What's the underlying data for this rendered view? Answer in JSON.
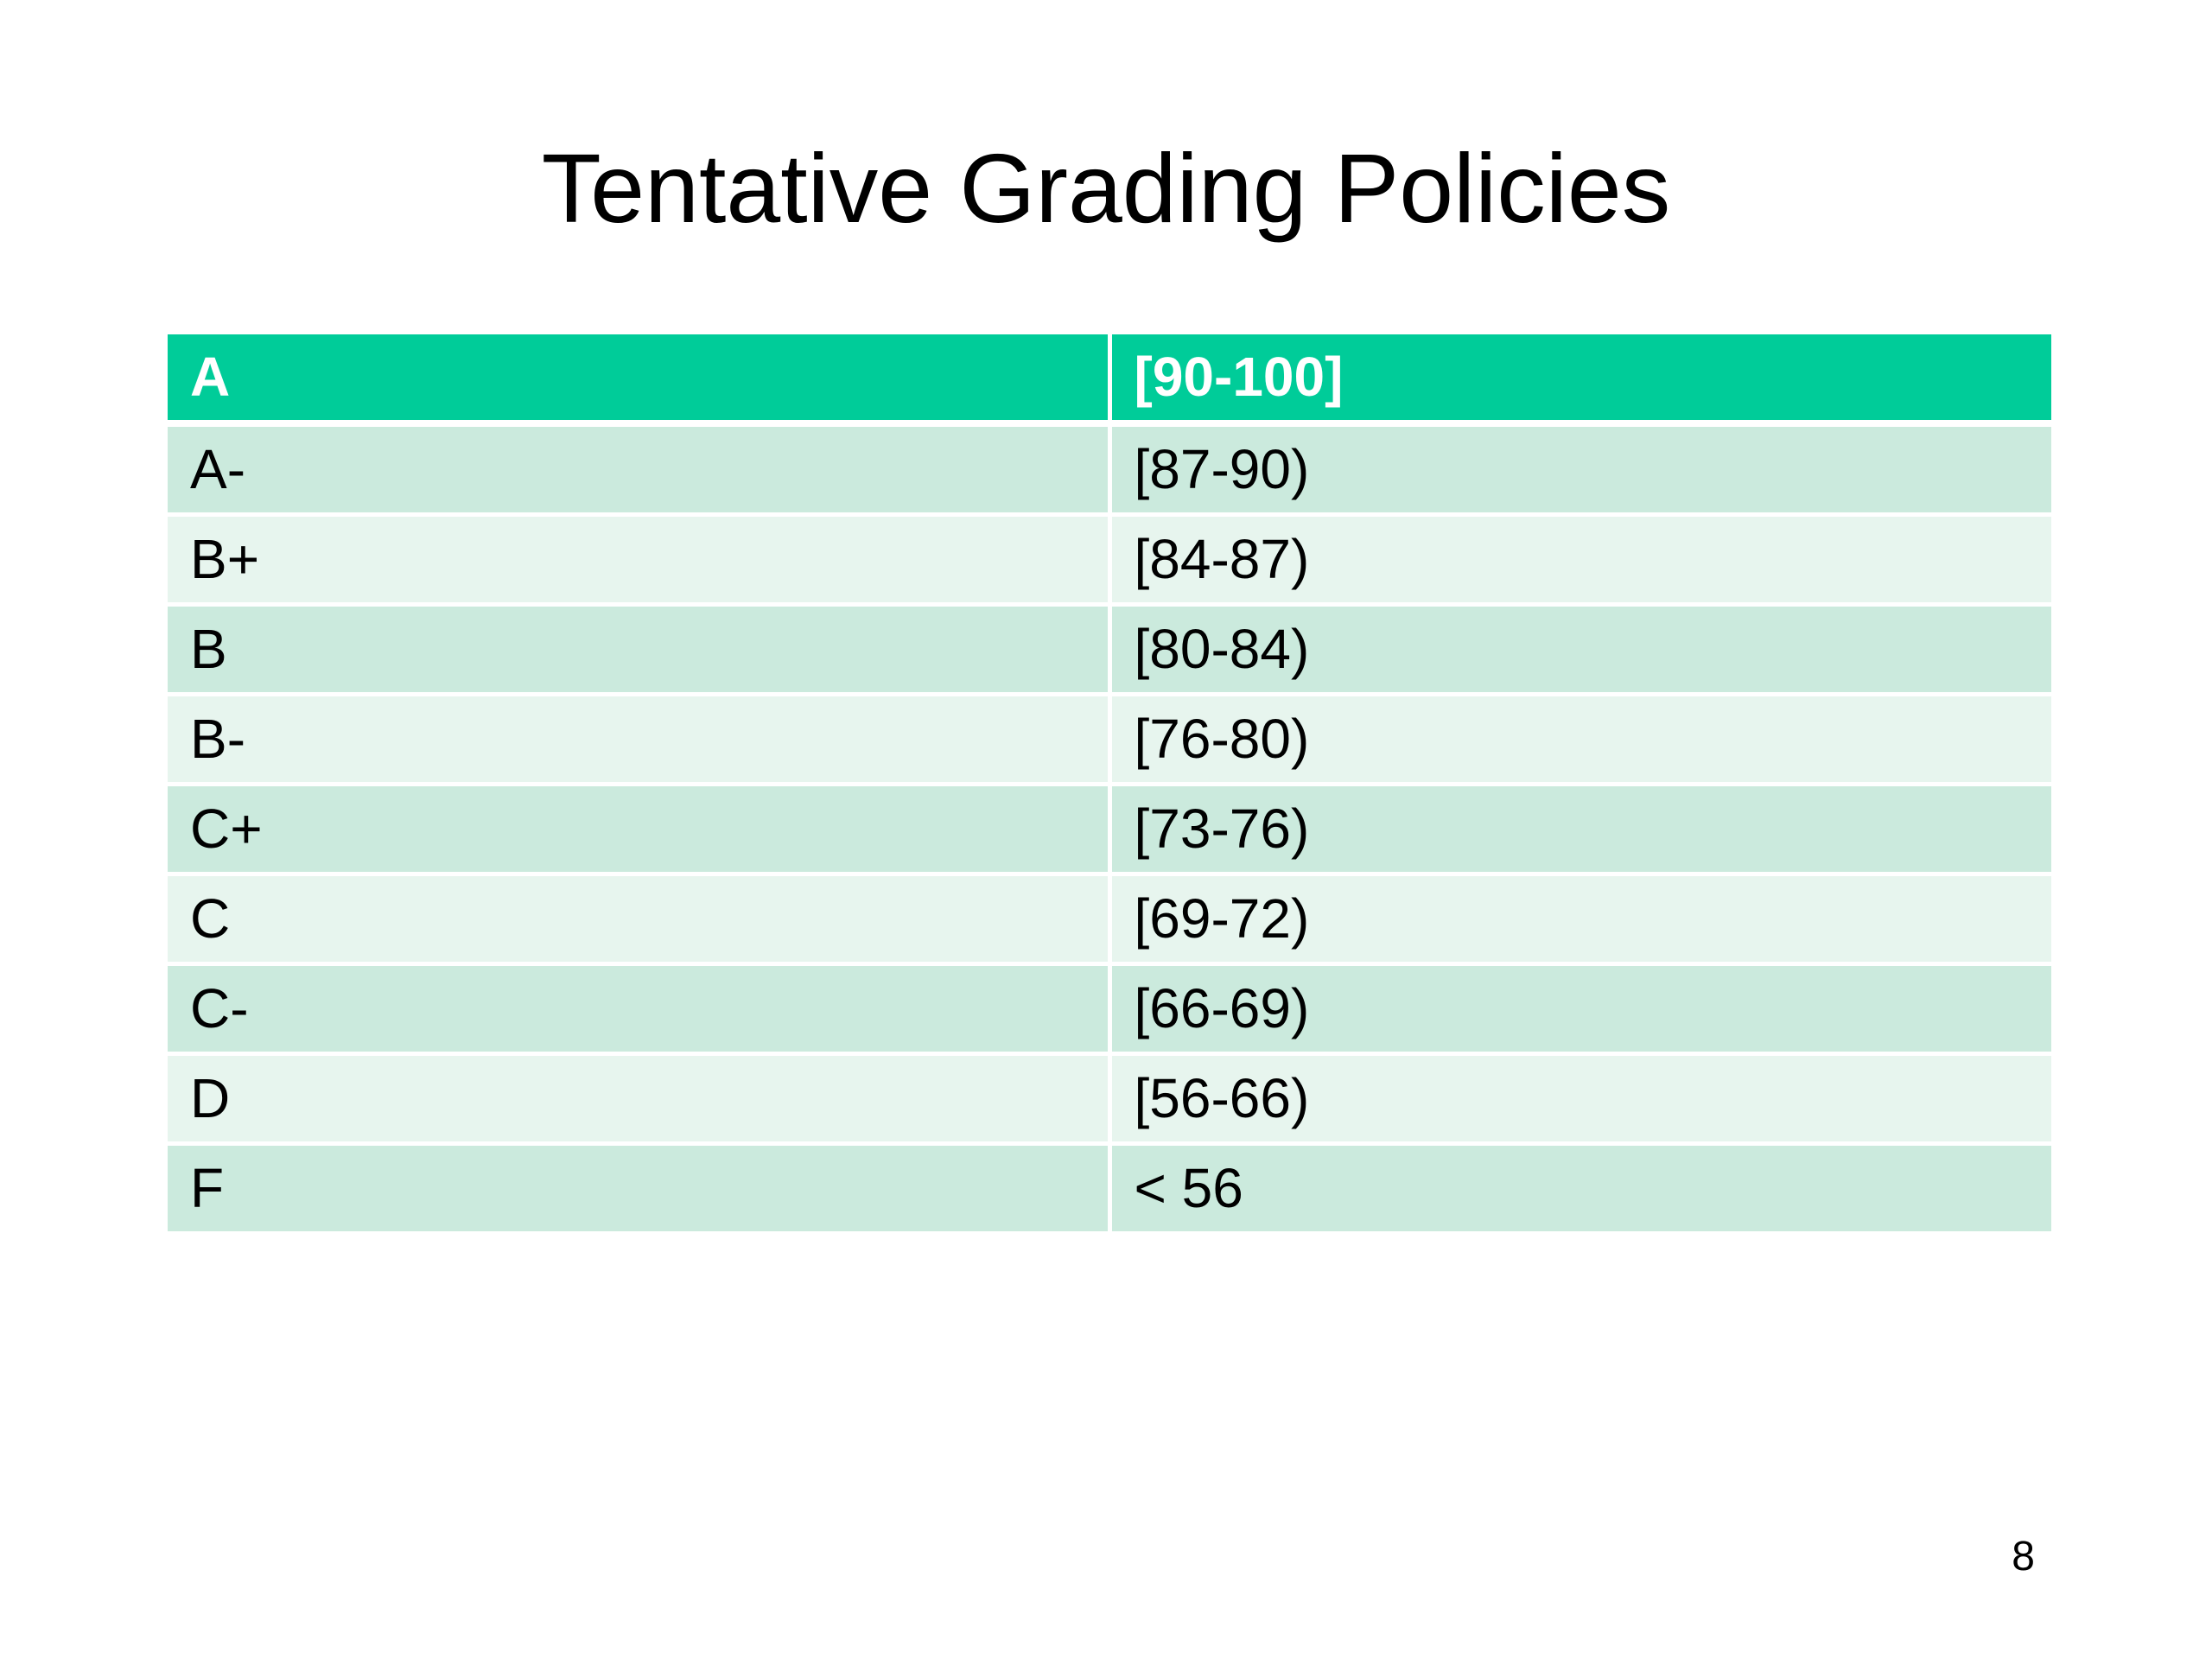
{
  "slide": {
    "title": "Tentative Grading Policies",
    "page_number": "8"
  },
  "colors": {
    "header_background": "#00cc99",
    "header_text": "#ffffff",
    "row_dark": "#cbeadd",
    "row_light": "#e7f5ee"
  },
  "table": {
    "header": {
      "grade": "A",
      "range": "[90-100]"
    },
    "rows": [
      {
        "grade": "A-",
        "range": "[87-90)"
      },
      {
        "grade": "B+",
        "range": "[84-87)"
      },
      {
        "grade": "B",
        "range": "[80-84)"
      },
      {
        "grade": "B-",
        "range": "[76-80)"
      },
      {
        "grade": "C+",
        "range": "[73-76)"
      },
      {
        "grade": "C",
        "range": "[69-72)"
      },
      {
        "grade": "C-",
        "range": "[66-69)"
      },
      {
        "grade": "D",
        "range": "[56-66)"
      },
      {
        "grade": "F",
        "range": "< 56"
      }
    ]
  }
}
